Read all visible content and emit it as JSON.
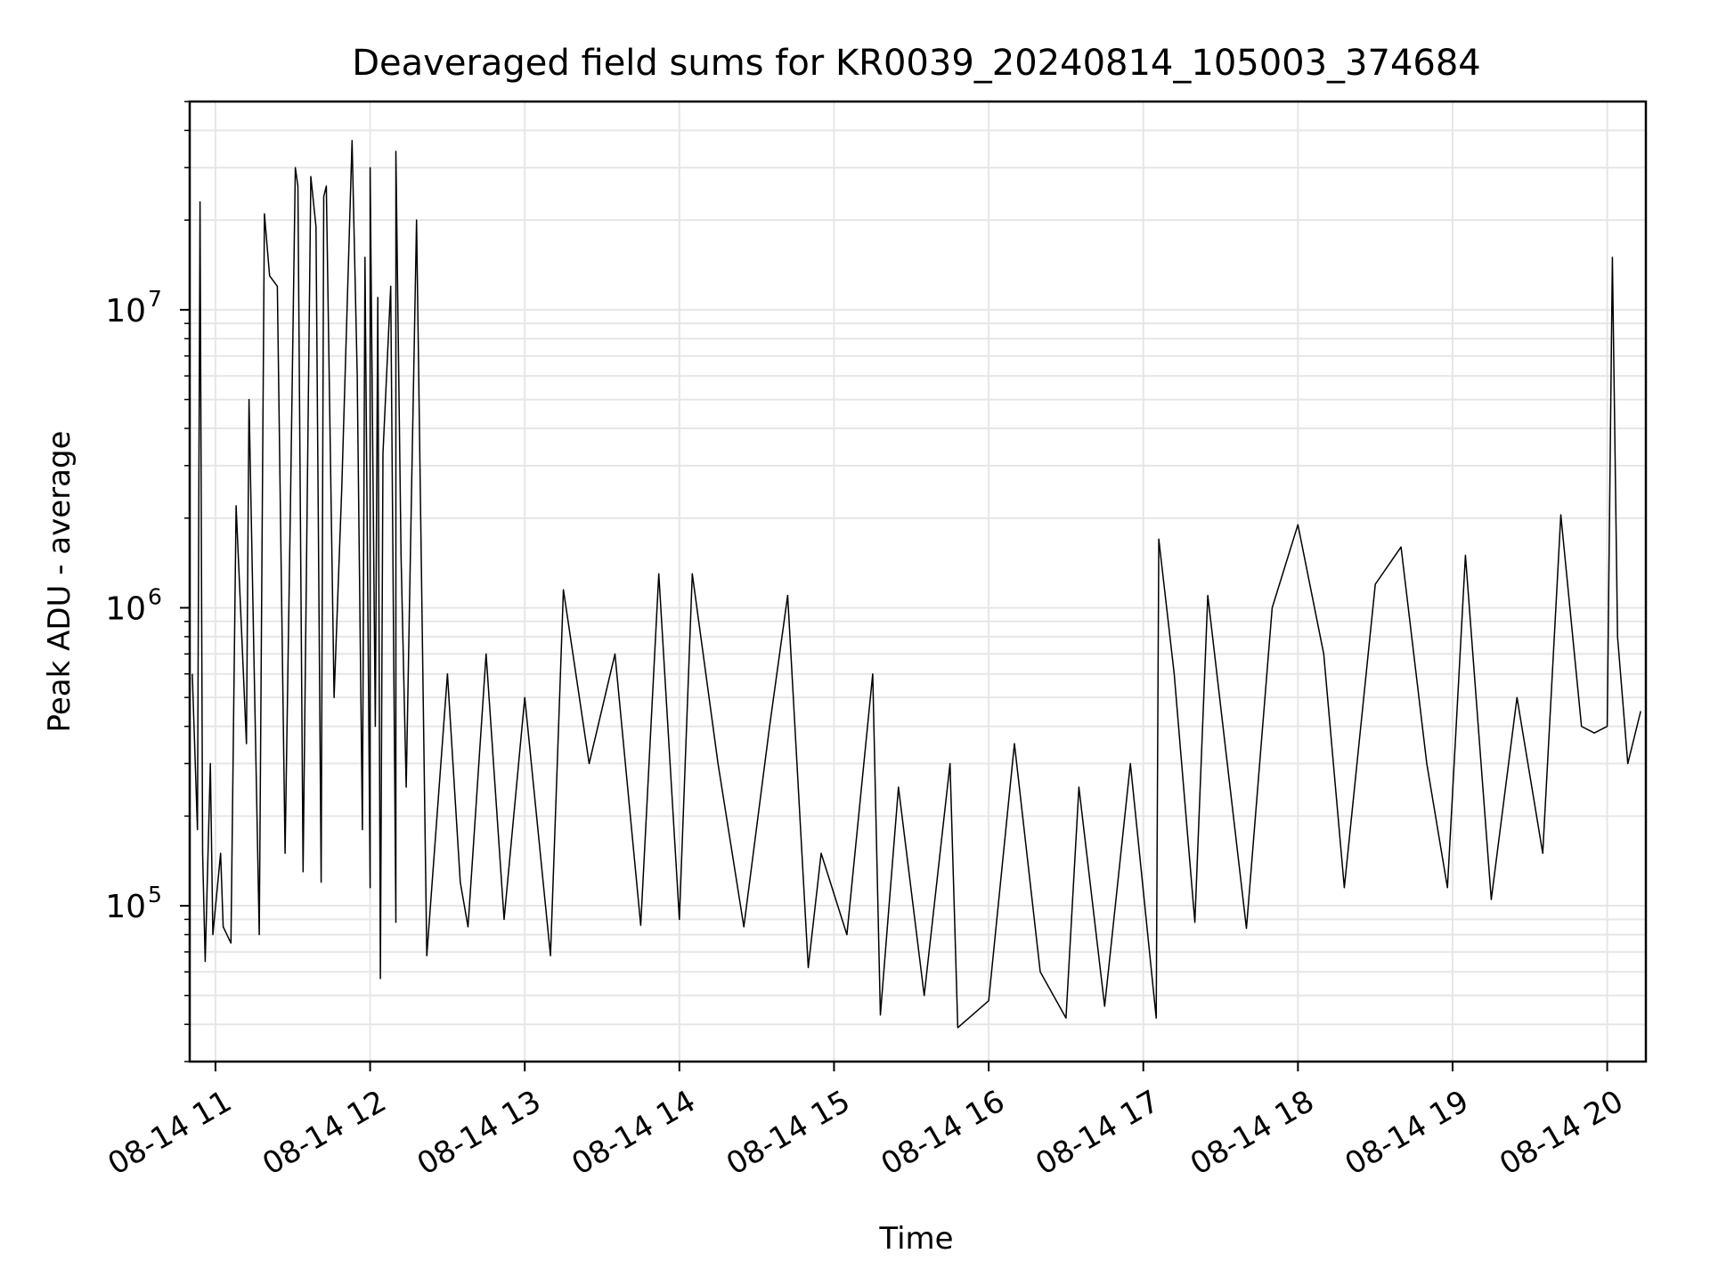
{
  "chart_data": {
    "type": "line",
    "title": "Deaveraged field sums for KR0039_20240814_105003_374684",
    "xlabel": "Time",
    "ylabel": "Peak ADU - average",
    "yscale": "log",
    "ylim": [
      30000,
      50000000
    ],
    "xlim": [
      "2024-08-14 10:50",
      "2024-08-14 20:15"
    ],
    "grid": true,
    "line_color": "#000000",
    "grid_color": "#e6e6e6",
    "x_ticks": [
      {
        "value": "2024-08-14 11:00",
        "label": "08-14 11"
      },
      {
        "value": "2024-08-14 12:00",
        "label": "08-14 12"
      },
      {
        "value": "2024-08-14 13:00",
        "label": "08-14 13"
      },
      {
        "value": "2024-08-14 14:00",
        "label": "08-14 14"
      },
      {
        "value": "2024-08-14 15:00",
        "label": "08-14 15"
      },
      {
        "value": "2024-08-14 16:00",
        "label": "08-14 16"
      },
      {
        "value": "2024-08-14 17:00",
        "label": "08-14 17"
      },
      {
        "value": "2024-08-14 18:00",
        "label": "08-14 18"
      },
      {
        "value": "2024-08-14 19:00",
        "label": "08-14 19"
      },
      {
        "value": "2024-08-14 20:00",
        "label": "08-14 20"
      }
    ],
    "y_ticks": [
      {
        "value": 100000,
        "base": "10",
        "exp": "5"
      },
      {
        "value": 1000000,
        "base": "10",
        "exp": "6"
      },
      {
        "value": 10000000,
        "base": "10",
        "exp": "7"
      }
    ],
    "series": [
      {
        "points": [
          [
            "2024-08-14 10:51",
            600000
          ],
          [
            "2024-08-14 10:53",
            180000
          ],
          [
            "2024-08-14 10:54",
            23000000
          ],
          [
            "2024-08-14 10:55",
            150000
          ],
          [
            "2024-08-14 10:56",
            65000
          ],
          [
            "2024-08-14 10:58",
            300000
          ],
          [
            "2024-08-14 10:59",
            80000
          ],
          [
            "2024-08-14 11:02",
            150000
          ],
          [
            "2024-08-14 11:03",
            85000
          ],
          [
            "2024-08-14 11:06",
            75000
          ],
          [
            "2024-08-14 11:08",
            2200000
          ],
          [
            "2024-08-14 11:12",
            350000
          ],
          [
            "2024-08-14 11:13",
            5000000
          ],
          [
            "2024-08-14 11:17",
            80000
          ],
          [
            "2024-08-14 11:19",
            21000000
          ],
          [
            "2024-08-14 11:21",
            13000000
          ],
          [
            "2024-08-14 11:24",
            12000000
          ],
          [
            "2024-08-14 11:27",
            150000
          ],
          [
            "2024-08-14 11:29",
            2000000
          ],
          [
            "2024-08-14 11:31",
            30000000
          ],
          [
            "2024-08-14 11:32",
            26000000
          ],
          [
            "2024-08-14 11:34",
            130000
          ],
          [
            "2024-08-14 11:37",
            28000000
          ],
          [
            "2024-08-14 11:39",
            19000000
          ],
          [
            "2024-08-14 11:41",
            120000
          ],
          [
            "2024-08-14 11:42",
            24000000
          ],
          [
            "2024-08-14 11:43",
            26000000
          ],
          [
            "2024-08-14 11:46",
            500000
          ],
          [
            "2024-08-14 11:49",
            2500000
          ],
          [
            "2024-08-14 11:53",
            37000000
          ],
          [
            "2024-08-14 11:55",
            6000000
          ],
          [
            "2024-08-14 11:57",
            180000
          ],
          [
            "2024-08-14 11:58",
            15000000
          ],
          [
            "2024-08-14 12:00",
            115000
          ],
          [
            "2024-08-14 12:00",
            30000000
          ],
          [
            "2024-08-14 12:02",
            400000
          ],
          [
            "2024-08-14 12:03",
            11000000
          ],
          [
            "2024-08-14 12:04",
            57000
          ],
          [
            "2024-08-14 12:05",
            3300000
          ],
          [
            "2024-08-14 12:08",
            12000000
          ],
          [
            "2024-08-14 12:10",
            88000
          ],
          [
            "2024-08-14 12:10",
            34000000
          ],
          [
            "2024-08-14 12:12",
            1500000
          ],
          [
            "2024-08-14 12:14",
            250000
          ],
          [
            "2024-08-14 12:16",
            2300000
          ],
          [
            "2024-08-14 12:18",
            20000000
          ],
          [
            "2024-08-14 12:22",
            68000
          ],
          [
            "2024-08-14 12:30",
            600000
          ],
          [
            "2024-08-14 12:35",
            120000
          ],
          [
            "2024-08-14 12:38",
            85000
          ],
          [
            "2024-08-14 12:45",
            700000
          ],
          [
            "2024-08-14 12:52",
            90000
          ],
          [
            "2024-08-14 13:00",
            500000
          ],
          [
            "2024-08-14 13:10",
            68000
          ],
          [
            "2024-08-14 13:15",
            1150000
          ],
          [
            "2024-08-14 13:25",
            300000
          ],
          [
            "2024-08-14 13:35",
            700000
          ],
          [
            "2024-08-14 13:45",
            86000
          ],
          [
            "2024-08-14 13:52",
            1300000
          ],
          [
            "2024-08-14 14:00",
            90000
          ],
          [
            "2024-08-14 14:05",
            1300000
          ],
          [
            "2024-08-14 14:15",
            300000
          ],
          [
            "2024-08-14 14:25",
            85000
          ],
          [
            "2024-08-14 14:35",
            400000
          ],
          [
            "2024-08-14 14:42",
            1100000
          ],
          [
            "2024-08-14 14:50",
            62000
          ],
          [
            "2024-08-14 14:55",
            150000
          ],
          [
            "2024-08-14 15:05",
            80000
          ],
          [
            "2024-08-14 15:15",
            600000
          ],
          [
            "2024-08-14 15:18",
            43000
          ],
          [
            "2024-08-14 15:25",
            250000
          ],
          [
            "2024-08-14 15:35",
            50000
          ],
          [
            "2024-08-14 15:45",
            300000
          ],
          [
            "2024-08-14 15:48",
            39000
          ],
          [
            "2024-08-14 16:00",
            48000
          ],
          [
            "2024-08-14 16:10",
            350000
          ],
          [
            "2024-08-14 16:20",
            60000
          ],
          [
            "2024-08-14 16:30",
            42000
          ],
          [
            "2024-08-14 16:35",
            250000
          ],
          [
            "2024-08-14 16:45",
            46000
          ],
          [
            "2024-08-14 16:55",
            300000
          ],
          [
            "2024-08-14 17:05",
            42000
          ],
          [
            "2024-08-14 17:06",
            1700000
          ],
          [
            "2024-08-14 17:12",
            600000
          ],
          [
            "2024-08-14 17:20",
            88000
          ],
          [
            "2024-08-14 17:25",
            1100000
          ],
          [
            "2024-08-14 17:40",
            84000
          ],
          [
            "2024-08-14 17:50",
            1000000
          ],
          [
            "2024-08-14 18:00",
            1900000
          ],
          [
            "2024-08-14 18:10",
            700000
          ],
          [
            "2024-08-14 18:18",
            115000
          ],
          [
            "2024-08-14 18:30",
            1200000
          ],
          [
            "2024-08-14 18:40",
            1600000
          ],
          [
            "2024-08-14 18:50",
            300000
          ],
          [
            "2024-08-14 18:58",
            115000
          ],
          [
            "2024-08-14 19:05",
            1500000
          ],
          [
            "2024-08-14 19:15",
            105000
          ],
          [
            "2024-08-14 19:25",
            500000
          ],
          [
            "2024-08-14 19:35",
            150000
          ],
          [
            "2024-08-14 19:42",
            2050000
          ],
          [
            "2024-08-14 19:50",
            400000
          ],
          [
            "2024-08-14 19:55",
            380000
          ],
          [
            "2024-08-14 20:00",
            400000
          ],
          [
            "2024-08-14 20:02",
            15000000
          ],
          [
            "2024-08-14 20:04",
            800000
          ],
          [
            "2024-08-14 20:08",
            300000
          ],
          [
            "2024-08-14 20:13",
            450000
          ]
        ]
      }
    ]
  }
}
